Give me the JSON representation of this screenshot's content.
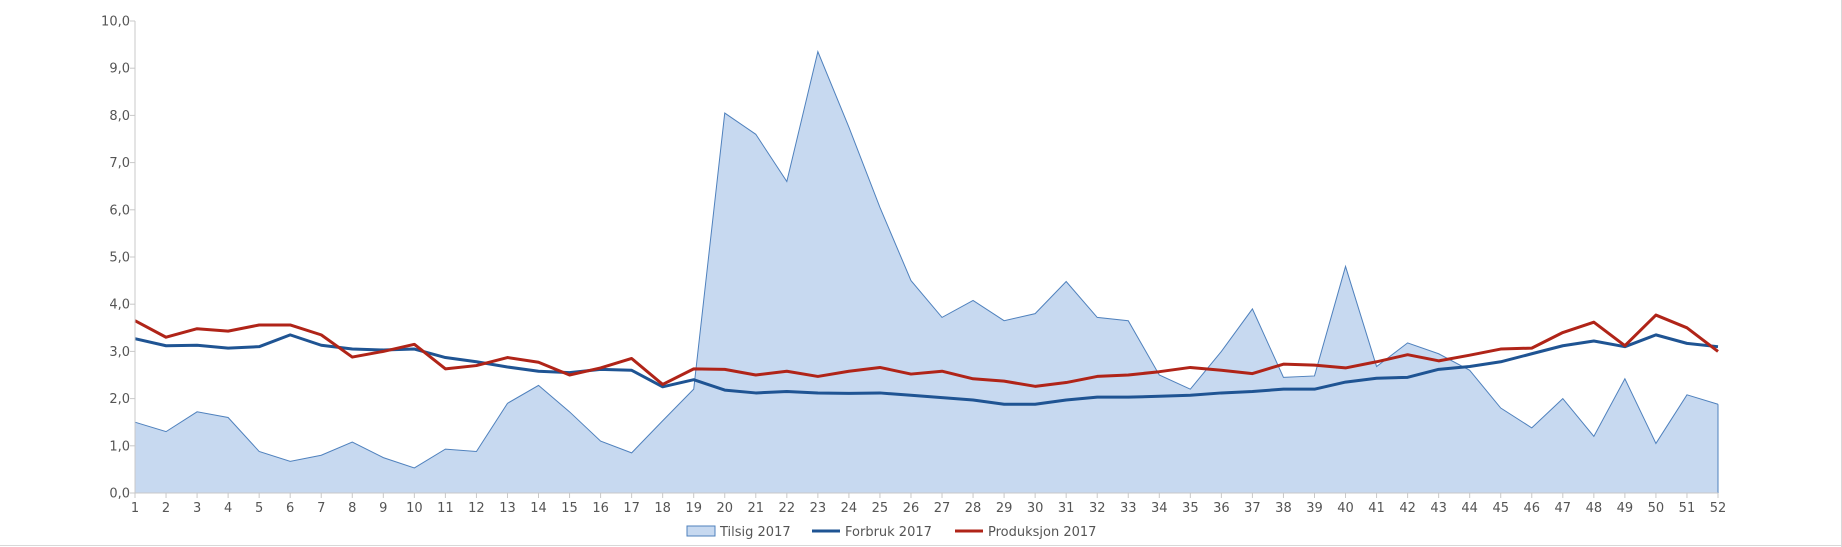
{
  "chart_data": {
    "type": "area",
    "title": "",
    "xlabel": "",
    "ylabel": "",
    "x": [
      1,
      2,
      3,
      4,
      5,
      6,
      7,
      8,
      9,
      10,
      11,
      12,
      13,
      14,
      15,
      16,
      17,
      18,
      19,
      20,
      21,
      22,
      23,
      24,
      25,
      26,
      27,
      28,
      29,
      30,
      31,
      32,
      33,
      34,
      35,
      36,
      37,
      38,
      39,
      40,
      41,
      42,
      43,
      44,
      45,
      46,
      47,
      48,
      49,
      50,
      51,
      52
    ],
    "ylim": [
      0,
      10
    ],
    "y_ticks": [
      "0,0",
      "1,0",
      "2,0",
      "3,0",
      "4,0",
      "5,0",
      "6,0",
      "7,0",
      "8,0",
      "9,0",
      "10,0"
    ],
    "grid": false,
    "legend_position": "bottom-center",
    "series": [
      {
        "name": "Tilsig 2017",
        "type": "area",
        "fill": "#c7d9f0",
        "stroke": "#4f81bd",
        "values": [
          1.5,
          1.3,
          1.72,
          1.6,
          0.88,
          0.67,
          0.8,
          1.08,
          0.75,
          0.53,
          0.93,
          0.88,
          1.9,
          2.28,
          1.72,
          1.1,
          0.85,
          1.53,
          2.2,
          8.05,
          7.6,
          6.6,
          9.35,
          7.75,
          6.05,
          4.5,
          3.72,
          4.08,
          3.65,
          3.8,
          4.48,
          3.72,
          3.65,
          2.5,
          2.2,
          3.0,
          3.9,
          2.45,
          2.48,
          4.8,
          2.68,
          3.18,
          2.95,
          2.6,
          1.8,
          1.38,
          2.0,
          1.2,
          2.42,
          1.05,
          2.08,
          1.88
        ]
      },
      {
        "name": "Forbruk 2017",
        "type": "line",
        "color": "#1f5493",
        "values": [
          3.27,
          3.12,
          3.13,
          3.07,
          3.1,
          3.35,
          3.13,
          3.05,
          3.03,
          3.05,
          2.87,
          2.78,
          2.67,
          2.58,
          2.55,
          2.62,
          2.6,
          2.25,
          2.4,
          2.18,
          2.12,
          2.15,
          2.12,
          2.11,
          2.12,
          2.07,
          2.02,
          1.97,
          1.88,
          1.88,
          1.97,
          2.03,
          2.03,
          2.05,
          2.07,
          2.12,
          2.15,
          2.2,
          2.2,
          2.35,
          2.43,
          2.45,
          2.62,
          2.68,
          2.78,
          2.95,
          3.12,
          3.22,
          3.1,
          3.35,
          3.17,
          3.1
        ]
      },
      {
        "name": "Produksjon 2017",
        "type": "line",
        "color": "#b02418",
        "values": [
          3.65,
          3.3,
          3.48,
          3.43,
          3.56,
          3.56,
          3.35,
          2.88,
          3.0,
          3.15,
          2.63,
          2.7,
          2.87,
          2.77,
          2.5,
          2.65,
          2.85,
          2.3,
          2.63,
          2.62,
          2.5,
          2.58,
          2.47,
          2.58,
          2.66,
          2.52,
          2.58,
          2.42,
          2.37,
          2.26,
          2.34,
          2.47,
          2.5,
          2.57,
          2.66,
          2.6,
          2.53,
          2.73,
          2.71,
          2.65,
          2.78,
          2.93,
          2.8,
          2.92,
          3.05,
          3.07,
          3.4,
          3.62,
          3.12,
          3.77,
          3.5,
          3.0
        ]
      }
    ]
  }
}
